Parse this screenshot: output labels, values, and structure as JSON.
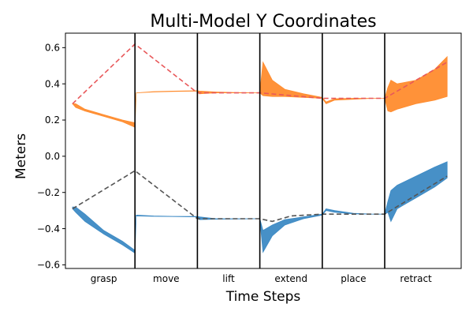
{
  "chart_data": {
    "type": "area",
    "title": "Multi-Model Y Coordinates",
    "xlabel": "Time Steps",
    "ylabel": "Meters",
    "ylim": [
      -0.62,
      0.68
    ],
    "yticks": [
      0.6,
      0.4,
      0.2,
      0.0,
      -0.2,
      -0.4,
      -0.6
    ],
    "ytick_labels": [
      "0.6",
      "0.4",
      "0.2",
      "0.0",
      "−0.2",
      "−0.4",
      "−0.6"
    ],
    "grid": false,
    "legend": "none",
    "segments": [
      "grasp",
      "move",
      "lift",
      "extend",
      "place",
      "retract"
    ],
    "colors": {
      "upper_band": "#ff8c2e",
      "lower_band": "#3d8ac4",
      "upper_ref": "#e8585a",
      "lower_ref": "#555555",
      "boundary": "#000000"
    },
    "series": [
      {
        "key": "upper_band",
        "style": "band",
        "x": [
          0.0,
          0.05,
          0.2,
          0.5,
          0.8,
          1.0,
          1.02,
          1.3,
          1.6,
          2.0,
          2.03,
          2.3,
          2.6,
          3.0,
          3.05,
          3.2,
          3.4,
          3.7,
          4.0,
          4.06,
          4.2,
          4.5,
          4.8,
          5.0,
          5.05,
          5.1,
          5.2,
          5.5,
          5.8,
          6.0
        ],
        "y_low": [
          0.29,
          0.27,
          0.25,
          0.22,
          0.19,
          0.16,
          0.35,
          0.355,
          0.358,
          0.36,
          0.345,
          0.35,
          0.35,
          0.35,
          0.335,
          0.33,
          0.33,
          0.325,
          0.32,
          0.29,
          0.31,
          0.315,
          0.32,
          0.32,
          0.25,
          0.245,
          0.26,
          0.29,
          0.31,
          0.33
        ],
        "y_high": [
          0.29,
          0.29,
          0.26,
          0.23,
          0.2,
          0.185,
          0.35,
          0.357,
          0.36,
          0.362,
          0.36,
          0.355,
          0.352,
          0.35,
          0.52,
          0.42,
          0.37,
          0.345,
          0.325,
          0.3,
          0.318,
          0.32,
          0.32,
          0.32,
          0.38,
          0.42,
          0.4,
          0.42,
          0.48,
          0.55
        ]
      },
      {
        "key": "lower_band",
        "style": "band",
        "x": [
          0.0,
          0.05,
          0.2,
          0.5,
          0.8,
          1.0,
          1.02,
          1.3,
          1.6,
          2.0,
          2.03,
          2.3,
          2.6,
          3.0,
          3.05,
          3.2,
          3.4,
          3.7,
          4.0,
          4.06,
          4.2,
          4.5,
          4.8,
          5.0,
          5.05,
          5.1,
          5.2,
          5.5,
          5.8,
          6.0
        ],
        "y_low": [
          -0.29,
          -0.31,
          -0.36,
          -0.43,
          -0.49,
          -0.535,
          -0.33,
          -0.332,
          -0.333,
          -0.335,
          -0.35,
          -0.348,
          -0.347,
          -0.345,
          -0.53,
          -0.44,
          -0.38,
          -0.345,
          -0.325,
          -0.3,
          -0.31,
          -0.318,
          -0.32,
          -0.32,
          -0.31,
          -0.36,
          -0.29,
          -0.23,
          -0.17,
          -0.12
        ],
        "y_high": [
          -0.28,
          -0.28,
          -0.32,
          -0.41,
          -0.47,
          -0.52,
          -0.325,
          -0.33,
          -0.332,
          -0.333,
          -0.335,
          -0.345,
          -0.345,
          -0.345,
          -0.41,
          -0.38,
          -0.35,
          -0.335,
          -0.32,
          -0.29,
          -0.3,
          -0.315,
          -0.32,
          -0.32,
          -0.25,
          -0.19,
          -0.16,
          -0.11,
          -0.06,
          -0.03
        ]
      },
      {
        "key": "upper_ref",
        "style": "dashed",
        "x": [
          0.0,
          1.0,
          2.0,
          3.0,
          4.0,
          5.0,
          6.0
        ],
        "y": [
          0.29,
          0.62,
          0.35,
          0.35,
          0.32,
          0.32,
          0.52
        ]
      },
      {
        "key": "lower_ref",
        "style": "dashed",
        "x": [
          0.0,
          1.0,
          2.0,
          3.0,
          3.2,
          3.5,
          4.0,
          5.0,
          6.0
        ],
        "y": [
          -0.29,
          -0.08,
          -0.345,
          -0.345,
          -0.36,
          -0.33,
          -0.32,
          -0.32,
          -0.11
        ]
      }
    ],
    "boundaries": [
      1.0,
      2.0,
      3.0,
      4.0,
      5.0
    ]
  }
}
